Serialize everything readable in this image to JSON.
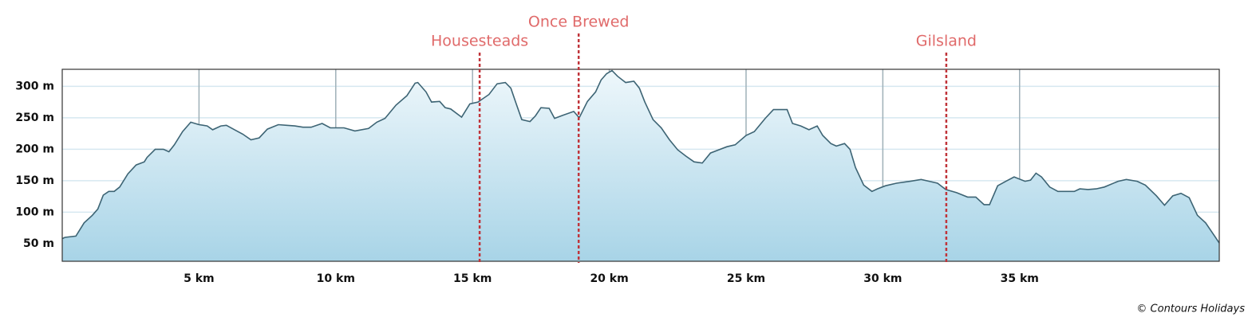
{
  "chart_data": {
    "type": "area",
    "x": [
      0.0,
      0.1,
      0.5,
      0.8,
      1.1,
      1.3,
      1.5,
      1.7,
      1.9,
      2.1,
      2.4,
      2.7,
      3.0,
      3.1,
      3.4,
      3.7,
      3.9,
      4.1,
      4.4,
      4.7,
      5.0,
      5.3,
      5.5,
      5.8,
      6.0,
      6.3,
      6.6,
      6.9,
      7.2,
      7.5,
      7.9,
      8.2,
      8.5,
      8.8,
      9.1,
      9.5,
      9.8,
      10.3,
      10.7,
      11.2,
      11.5,
      11.8,
      12.2,
      12.6,
      12.9,
      13.0,
      13.3,
      13.5,
      13.8,
      14.0,
      14.2,
      14.6,
      14.9,
      15.2,
      15.6,
      15.9,
      16.2,
      16.4,
      16.6,
      16.8,
      17.1,
      17.3,
      17.5,
      17.8,
      18.0,
      18.3,
      18.7,
      18.9,
      19.2,
      19.5,
      19.7,
      19.9,
      20.1,
      20.3,
      20.6,
      20.9,
      21.1,
      21.3,
      21.6,
      21.9,
      22.2,
      22.5,
      22.8,
      23.1,
      23.4,
      23.7,
      24.0,
      24.3,
      24.6,
      25.0,
      25.3,
      25.7,
      26.0,
      26.5,
      26.7,
      27.0,
      27.3,
      27.6,
      27.8,
      28.1,
      28.3,
      28.6,
      28.8,
      29.0,
      29.3,
      29.6,
      29.8,
      30.1,
      30.5,
      31.0,
      31.4,
      31.7,
      32.0,
      32.3,
      32.7,
      33.1,
      33.4,
      33.7,
      33.9,
      34.2,
      34.5,
      34.8,
      35.2,
      35.4,
      35.6,
      35.8,
      36.1,
      36.4,
      36.7,
      37.0,
      37.2,
      37.5,
      37.8,
      38.1,
      38.6,
      38.9,
      39.3,
      39.6,
      40.0,
      40.3,
      40.6,
      40.9,
      41.2,
      41.5,
      41.8,
      42.1,
      42.3
    ],
    "values": [
      58,
      60,
      62,
      83,
      95,
      105,
      127,
      133,
      133,
      140,
      161,
      175,
      180,
      187,
      200,
      200,
      196,
      207,
      228,
      243,
      239,
      237,
      231,
      237,
      238,
      231,
      224,
      215,
      218,
      232,
      239,
      238,
      237,
      235,
      235,
      241,
      234,
      234,
      229,
      233,
      243,
      249,
      270,
      285,
      305,
      306,
      291,
      275,
      276,
      266,
      264,
      251,
      272,
      275,
      287,
      304,
      306,
      297,
      272,
      247,
      244,
      253,
      266,
      265,
      249,
      254,
      260,
      250,
      276,
      291,
      310,
      320,
      325,
      316,
      306,
      308,
      297,
      275,
      247,
      234,
      215,
      199,
      189,
      180,
      178,
      194,
      199,
      204,
      207,
      222,
      228,
      249,
      263,
      263,
      241,
      237,
      231,
      237,
      222,
      209,
      205,
      209,
      200,
      171,
      143,
      133,
      137,
      142,
      146,
      149,
      152,
      149,
      146,
      136,
      131,
      124,
      124,
      112,
      112,
      142,
      149,
      156,
      149,
      151,
      162,
      156,
      140,
      133,
      133,
      133,
      137,
      136,
      137,
      140,
      149,
      152,
      149,
      143,
      126,
      111,
      126,
      130,
      123,
      95,
      83,
      64,
      51
    ],
    "color": "#3d6474",
    "xlim": [
      0,
      42.3
    ],
    "ylim": [
      22,
      327
    ],
    "xticks": [
      {
        "value": 5,
        "label": "5 km"
      },
      {
        "value": 10,
        "label": "10 km"
      },
      {
        "value": 15,
        "label": "15 km"
      },
      {
        "value": 20,
        "label": "20 km"
      },
      {
        "value": 25,
        "label": "25 km"
      },
      {
        "value": 30,
        "label": "30 km"
      },
      {
        "value": 35,
        "label": "35 km"
      }
    ],
    "yticks": [
      {
        "value": 50,
        "label": "50 m"
      },
      {
        "value": 100,
        "label": "100 m"
      },
      {
        "value": 150,
        "label": "150 m"
      },
      {
        "value": 200,
        "label": "200 m"
      },
      {
        "value": 250,
        "label": "250 m"
      },
      {
        "value": 300,
        "label": "300 m"
      }
    ],
    "grid": true,
    "markers": [
      {
        "label": "Housesteads",
        "x": 15.26
      },
      {
        "label": "Once Brewed",
        "x": 18.88
      },
      {
        "label": "Gilsland",
        "x": 32.32
      }
    ],
    "credit": "© Contours Holidays"
  }
}
